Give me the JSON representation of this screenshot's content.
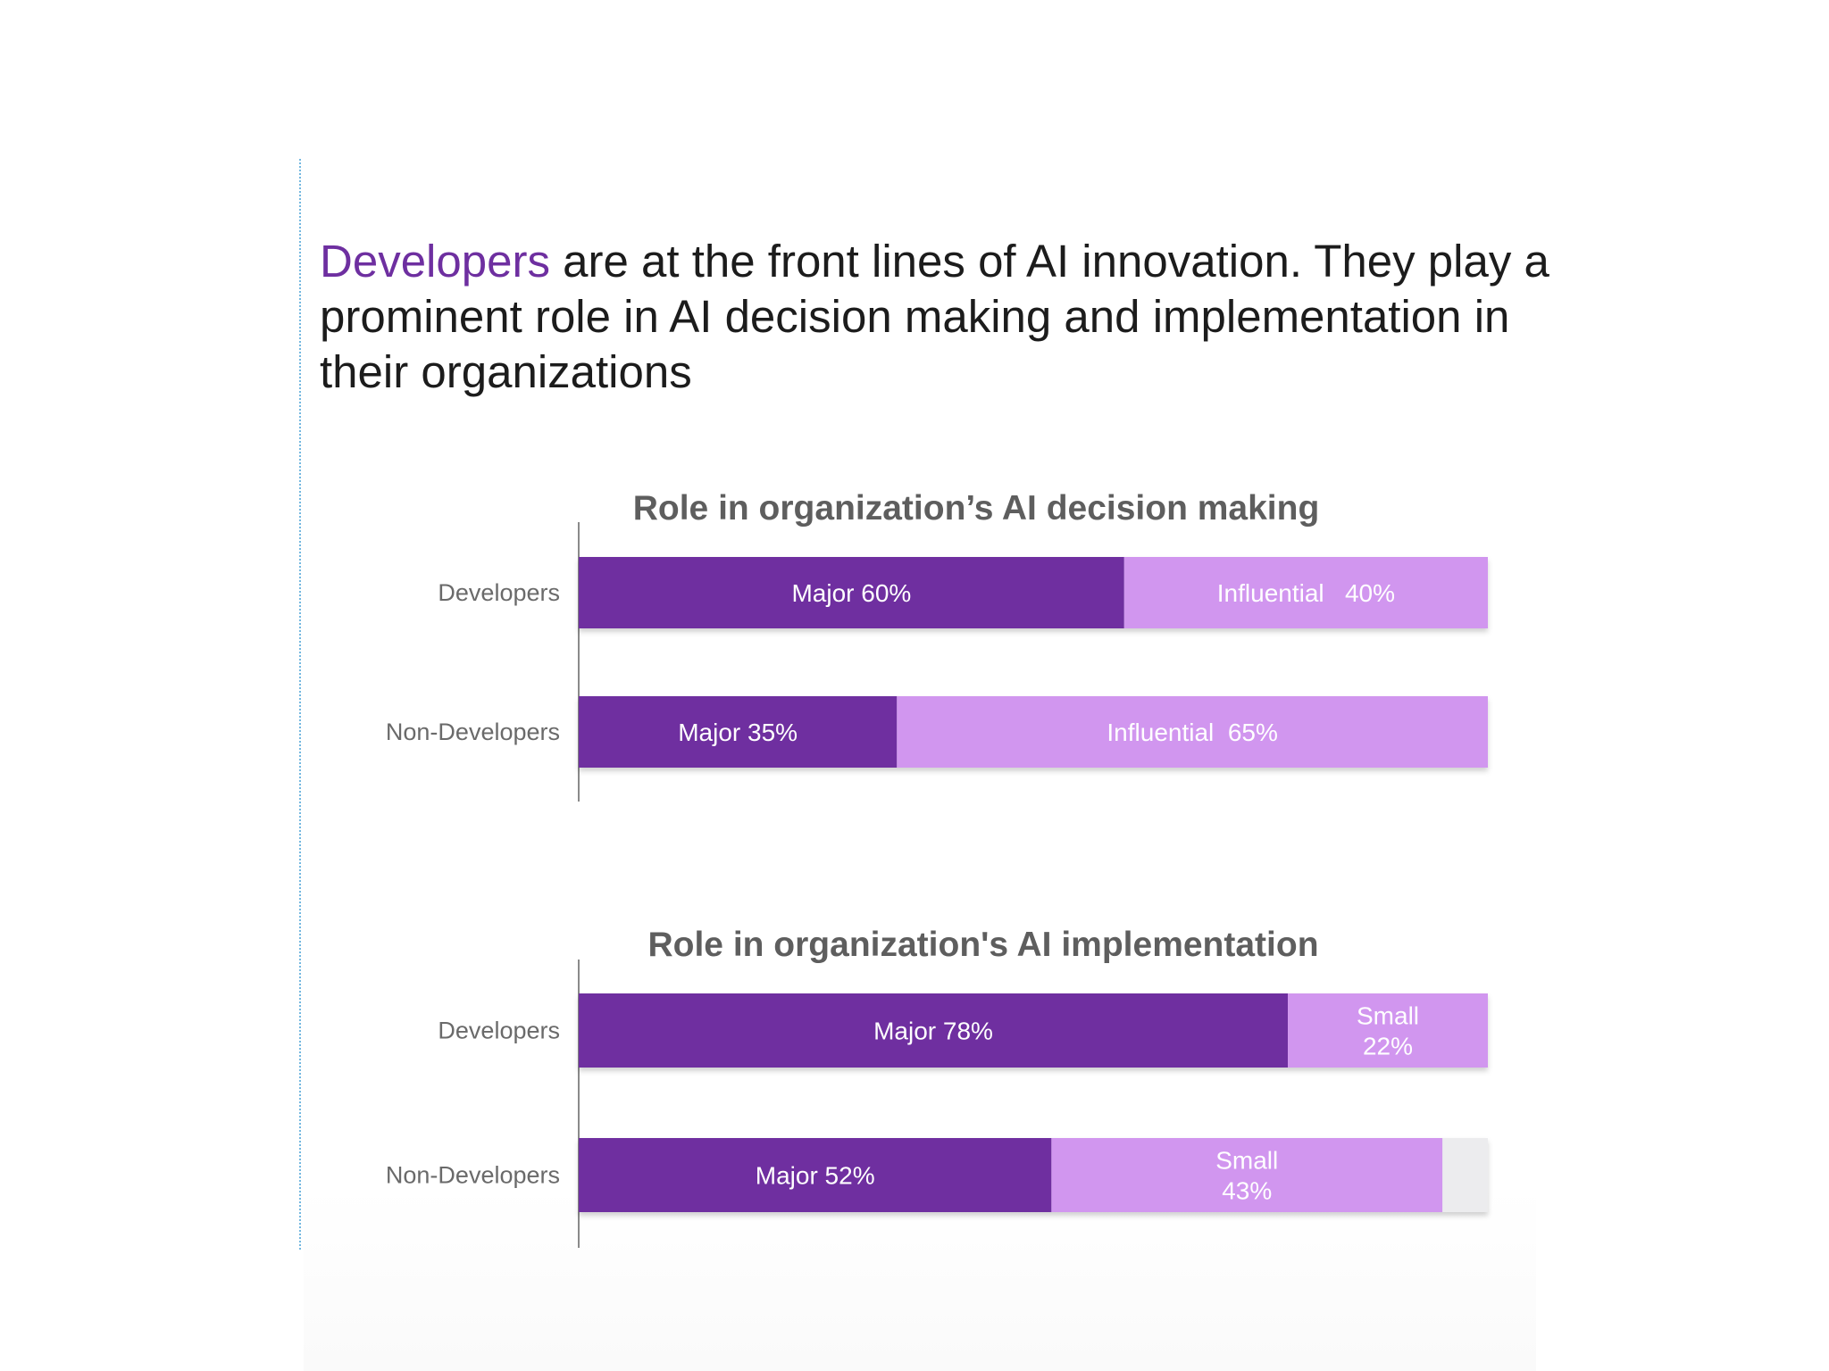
{
  "headline": {
    "accent": "Developers",
    "rest": " are at the front lines of AI innovation. They play a prominent role in AI decision making and implementation in their organizations"
  },
  "colors": {
    "major": "#6f2fa0",
    "secondary": "#d196ef",
    "remainder": "#ececee",
    "headline_accent": "#6e2fa0"
  },
  "chart_data": [
    {
      "type": "bar",
      "orientation": "horizontal",
      "stacked": true,
      "title": "Role in organization’s AI decision making",
      "categories": [
        "Developers",
        "Non-Developers"
      ],
      "xlim": [
        0,
        100
      ],
      "series": [
        {
          "name": "Major",
          "values": [
            60,
            35
          ],
          "labels": [
            "Major 60%",
            "Major 35%"
          ]
        },
        {
          "name": "Influential",
          "values": [
            40,
            65
          ],
          "labels": [
            "Influential   40%",
            "Influential  65%"
          ]
        }
      ]
    },
    {
      "type": "bar",
      "orientation": "horizontal",
      "stacked": true,
      "title": "Role in organization's AI implementation",
      "categories": [
        "Developers",
        "Non-Developers"
      ],
      "xlim": [
        0,
        100
      ],
      "series": [
        {
          "name": "Major",
          "values": [
            78,
            52
          ],
          "labels": [
            "Major 78%",
            "Major 52%"
          ]
        },
        {
          "name": "Small",
          "values": [
            22,
            43
          ],
          "labels": [
            "Small\n22%",
            "Small\n43%"
          ]
        }
      ]
    }
  ]
}
